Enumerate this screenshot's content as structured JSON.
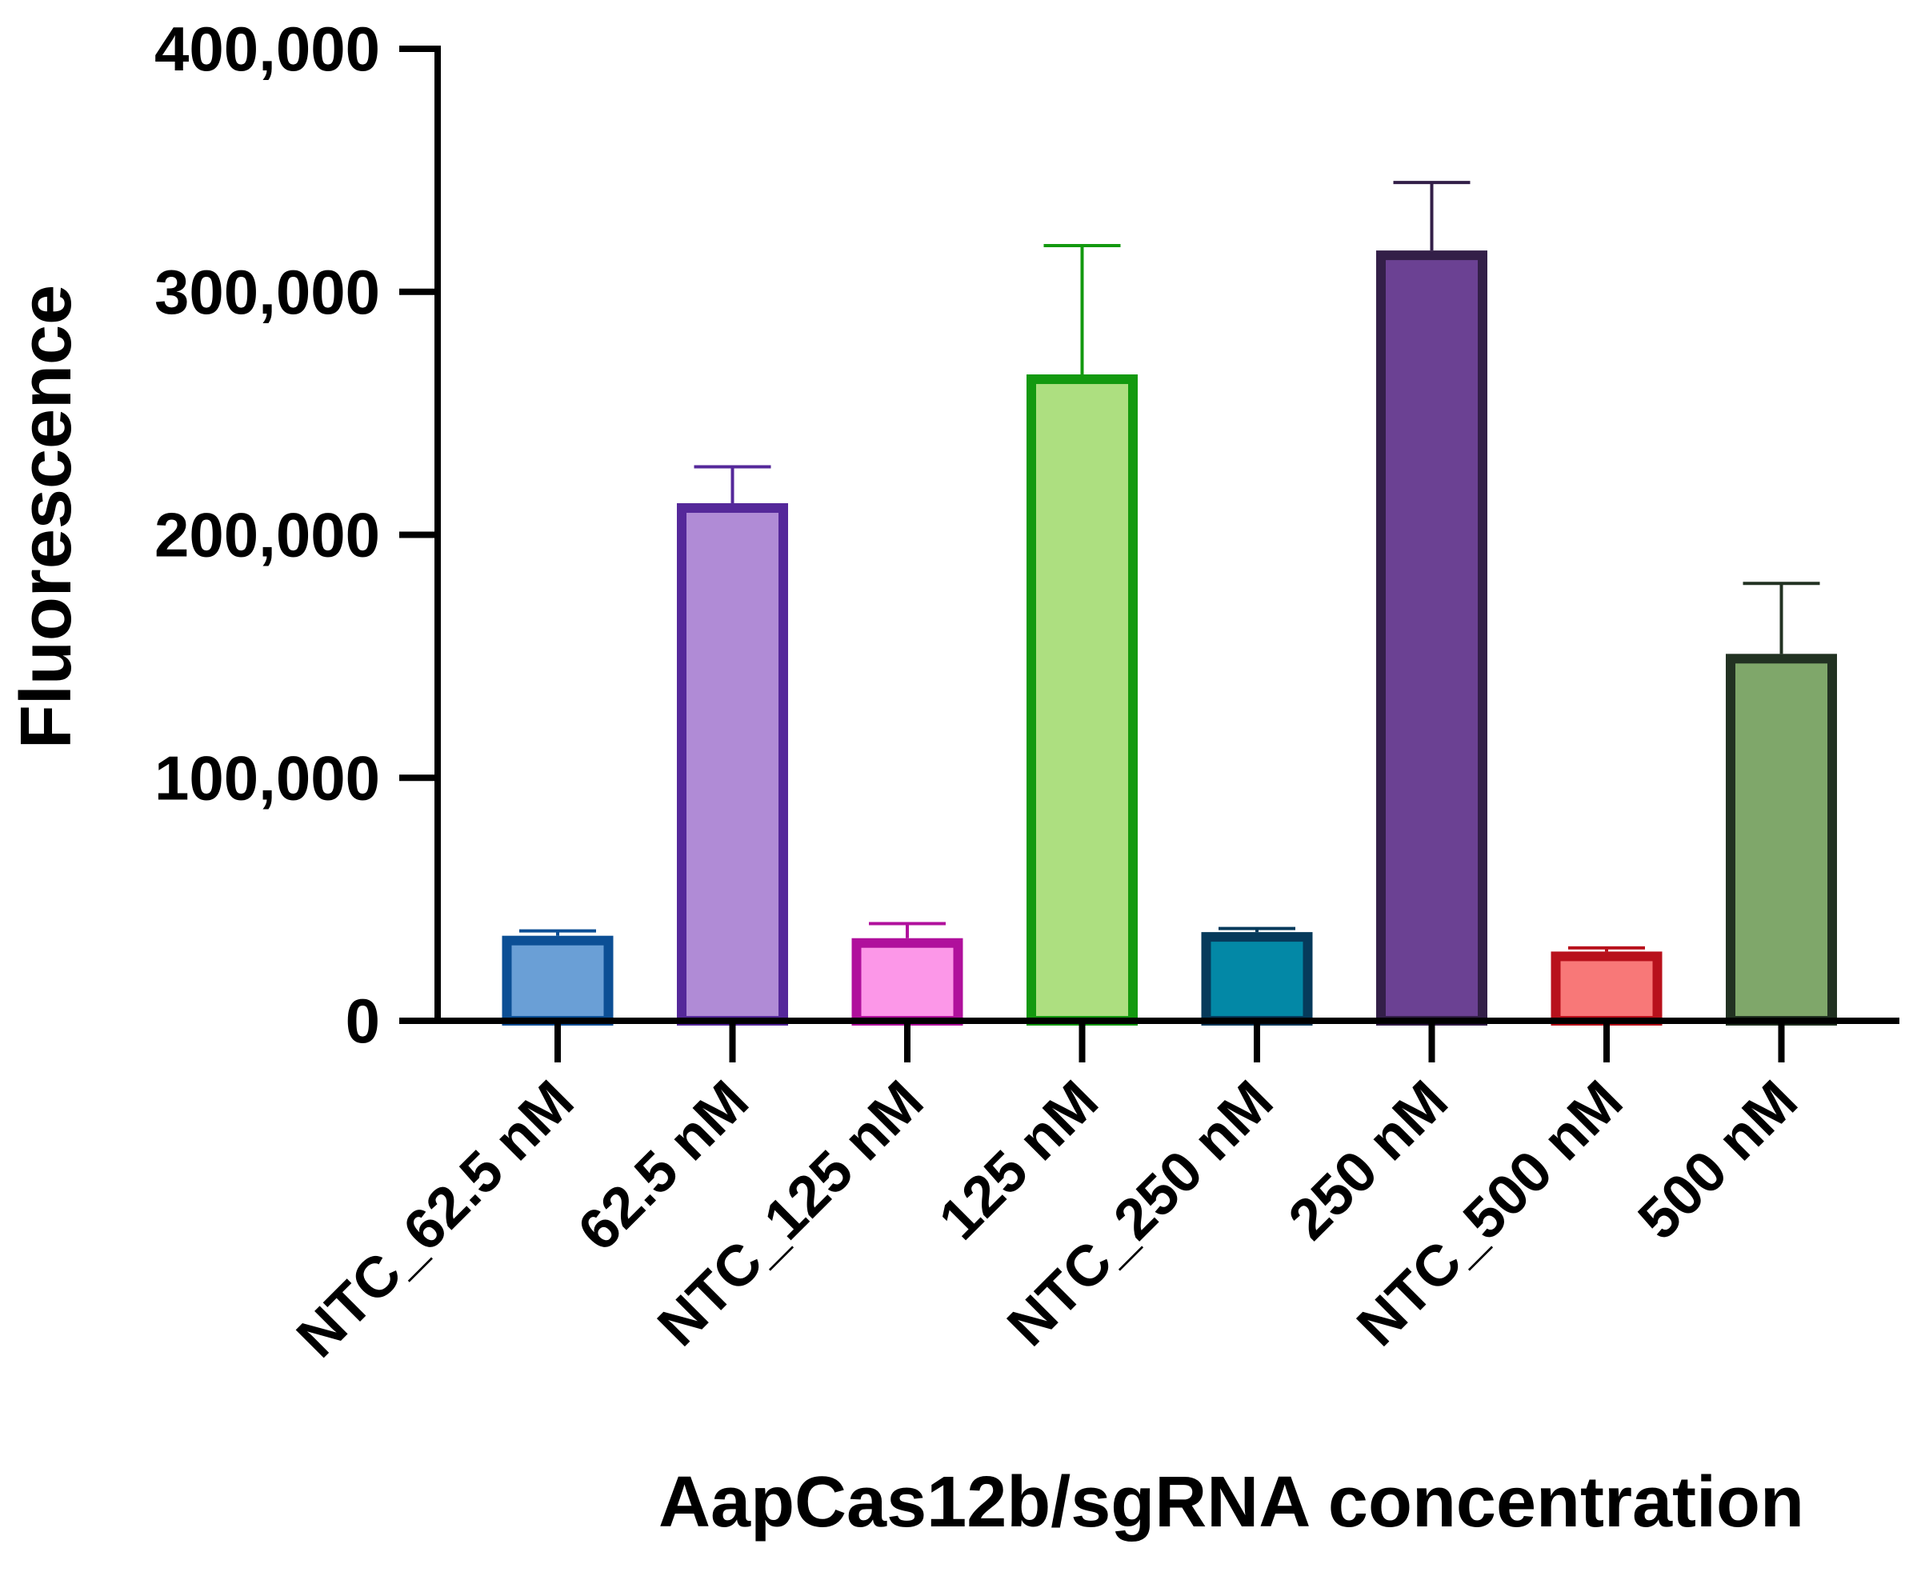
{
  "chart_data": {
    "type": "bar",
    "title": "",
    "xlabel": "AapCas12b/sgRNA concentration",
    "ylabel": "Fluorescence",
    "ylim": [
      0,
      400000
    ],
    "yticks": [
      0,
      100000,
      200000,
      300000,
      400000
    ],
    "ytick_labels": [
      "0",
      "100,000",
      "200,000",
      "300,000",
      "400,000"
    ],
    "grid": false,
    "legend": "none",
    "categories": [
      "NTC_62.5 nM",
      "62.5 nM",
      "NTC_125 nM",
      "125 nM",
      "NTC_250 nM",
      "250 nM",
      "NTC_500 nM",
      "500 nM"
    ],
    "values": [
      35000,
      213000,
      34000,
      266000,
      36500,
      317000,
      28500,
      151000
    ],
    "errors": [
      2000,
      15000,
      6000,
      53000,
      1500,
      28000,
      1500,
      29000
    ],
    "fill_colors": [
      "#6a9fd6",
      "#b08bd6",
      "#fc97e8",
      "#addf80",
      "#0388a6",
      "#6b4193",
      "#f87878",
      "#7fa76a"
    ],
    "edge_colors": [
      "#0c4f95",
      "#55289a",
      "#b0109c",
      "#13990f",
      "#063a5b",
      "#331f48",
      "#b8111c",
      "#223222"
    ]
  }
}
